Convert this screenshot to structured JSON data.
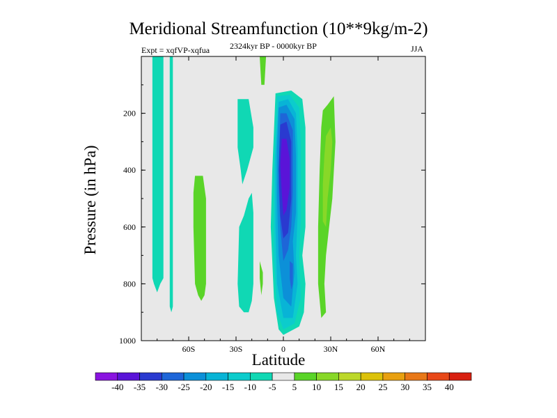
{
  "chart_data": {
    "type": "contour",
    "title": "Meridional Streamfunction (10**9kg/m-2)",
    "subtitle_left": "Expt = xqfVP-xqfua",
    "subtitle_center": "2324kyr BP - 0000kyr BP",
    "subtitle_right": "JJA",
    "xlabel": "Latitude",
    "ylabel": "Pressure (in hPa)",
    "xlim": [
      -90,
      90
    ],
    "ylim": [
      1000,
      0
    ],
    "x_ticks": [
      {
        "value": -60,
        "label": "60S"
      },
      {
        "value": -30,
        "label": "30S"
      },
      {
        "value": 0,
        "label": "0"
      },
      {
        "value": 30,
        "label": "30N"
      },
      {
        "value": 60,
        "label": "60N"
      }
    ],
    "y_ticks": [
      {
        "value": 200,
        "label": "200"
      },
      {
        "value": 400,
        "label": "400"
      },
      {
        "value": 600,
        "label": "600"
      },
      {
        "value": 800,
        "label": "800"
      },
      {
        "value": 1000,
        "label": "1000"
      }
    ],
    "colorbar": {
      "levels": [
        "-40",
        "-35",
        "-30",
        "-25",
        "-20",
        "-15",
        "-10",
        "-5",
        "5",
        "10",
        "15",
        "20",
        "25",
        "30",
        "35",
        "40"
      ],
      "colors": [
        "#8a14e0",
        "#5a14d8",
        "#2a3ad0",
        "#1e66d8",
        "#0c90d8",
        "#08b4d6",
        "#0ccccc",
        "#10d8b4",
        "#e8e8e8",
        "#5ad428",
        "#88d828",
        "#bcd82a",
        "#dcc20a",
        "#e8a010",
        "#e87818",
        "#e84818",
        "#d82010"
      ]
    },
    "regions": [
      {
        "name": "far-south-band",
        "level": "-5",
        "points": [
          [
            -83,
            0
          ],
          [
            -76,
            0
          ],
          [
            -76,
            780
          ],
          [
            -78,
            800
          ],
          [
            -80,
            830
          ],
          [
            -82,
            800
          ],
          [
            -83,
            780
          ]
        ]
      },
      {
        "name": "south-thin-strip",
        "level": "-5",
        "points": [
          [
            -72,
            0
          ],
          [
            -70,
            0
          ],
          [
            -70,
            880
          ],
          [
            -71,
            900
          ],
          [
            -72,
            880
          ]
        ]
      },
      {
        "name": "south-positive-cell",
        "level": "5",
        "points": [
          [
            -56,
            420
          ],
          [
            -51,
            420
          ],
          [
            -49,
            500
          ],
          [
            -49,
            800
          ],
          [
            -50,
            840
          ],
          [
            -52,
            860
          ],
          [
            -54,
            840
          ],
          [
            -56,
            800
          ],
          [
            -57,
            600
          ],
          [
            -57,
            480
          ]
        ]
      },
      {
        "name": "subtropical-upper-band",
        "level": "-5",
        "points": [
          [
            -29,
            150
          ],
          [
            -22,
            150
          ],
          [
            -19,
            250
          ],
          [
            -19,
            320
          ],
          [
            -23,
            400
          ],
          [
            -26,
            450
          ],
          [
            -27,
            400
          ],
          [
            -29,
            320
          ]
        ]
      },
      {
        "name": "subtropical-lower-band",
        "level": "-5",
        "points": [
          [
            -28,
            600
          ],
          [
            -25,
            560
          ],
          [
            -22,
            500
          ],
          [
            -20,
            480
          ],
          [
            -19,
            550
          ],
          [
            -19,
            800
          ],
          [
            -20,
            860
          ],
          [
            -22,
            900
          ],
          [
            -25,
            900
          ],
          [
            -28,
            880
          ],
          [
            -29,
            800
          ]
        ]
      },
      {
        "name": "top-positive-strip",
        "level": "5",
        "points": [
          [
            -15,
            0
          ],
          [
            -11,
            0
          ],
          [
            -12,
            100
          ],
          [
            -14,
            100
          ]
        ]
      },
      {
        "name": "small-positive-spot",
        "level": "5",
        "points": [
          [
            -15,
            720
          ],
          [
            -13,
            760
          ],
          [
            -13,
            800
          ],
          [
            -14,
            840
          ],
          [
            -15,
            780
          ]
        ]
      },
      {
        "name": "hadley-cell-outer",
        "level": "-5",
        "points": [
          [
            -5,
            130
          ],
          [
            5,
            120
          ],
          [
            12,
            150
          ],
          [
            14,
            250
          ],
          [
            14,
            600
          ],
          [
            12,
            700
          ],
          [
            14,
            800
          ],
          [
            13,
            900
          ],
          [
            10,
            950
          ],
          [
            0,
            980
          ],
          [
            -3,
            960
          ],
          [
            -6,
            850
          ],
          [
            -8,
            600
          ],
          [
            -7,
            400
          ]
        ]
      },
      {
        "name": "hadley-cell-minus10",
        "level": "-10",
        "points": [
          [
            -4,
            140
          ],
          [
            4,
            135
          ],
          [
            10,
            180
          ],
          [
            11,
            300
          ],
          [
            11,
            580
          ],
          [
            10,
            700
          ],
          [
            11,
            850
          ],
          [
            7,
            940
          ],
          [
            0,
            960
          ],
          [
            -4,
            900
          ],
          [
            -6,
            700
          ],
          [
            -6,
            400
          ]
        ]
      },
      {
        "name": "hadley-cell-minus15",
        "level": "-15",
        "points": [
          [
            -3,
            160
          ],
          [
            3,
            150
          ],
          [
            8,
            200
          ],
          [
            9,
            320
          ],
          [
            9,
            560
          ],
          [
            8,
            700
          ],
          [
            9,
            800
          ],
          [
            6,
            920
          ],
          [
            0,
            920
          ],
          [
            -4,
            800
          ],
          [
            -5,
            600
          ],
          [
            -5,
            350
          ]
        ]
      },
      {
        "name": "hadley-cell-minus20",
        "level": "-20",
        "points": [
          [
            -3,
            180
          ],
          [
            2,
            170
          ],
          [
            7,
            220
          ],
          [
            8,
            350
          ],
          [
            8,
            550
          ],
          [
            6,
            650
          ],
          [
            7,
            760
          ],
          [
            5,
            880
          ],
          [
            0,
            850
          ],
          [
            -3,
            700
          ],
          [
            -4,
            500
          ],
          [
            -4,
            320
          ]
        ]
      },
      {
        "name": "hadley-cell-minus25",
        "level": "-25",
        "points": [
          [
            -2,
            200
          ],
          [
            2,
            200
          ],
          [
            6,
            260
          ],
          [
            6,
            480
          ],
          [
            5,
            600
          ],
          [
            3,
            680
          ],
          [
            0,
            720
          ],
          [
            -2,
            600
          ],
          [
            -3,
            450
          ]
        ]
      },
      {
        "name": "hadley-cell-minus30",
        "level": "-30",
        "points": [
          [
            -2,
            240
          ],
          [
            2,
            230
          ],
          [
            5,
            300
          ],
          [
            5,
            500
          ],
          [
            3,
            620
          ],
          [
            0,
            640
          ],
          [
            -2,
            560
          ],
          [
            -3,
            400
          ]
        ]
      },
      {
        "name": "hadley-cell-minus35",
        "level": "-35",
        "points": [
          [
            -1,
            290
          ],
          [
            2,
            290
          ],
          [
            4,
            360
          ],
          [
            4,
            460
          ],
          [
            2,
            540
          ],
          [
            0,
            560
          ],
          [
            -1,
            480
          ],
          [
            -2,
            380
          ]
        ]
      },
      {
        "name": "north-positive-cell",
        "level": "5",
        "points": [
          [
            25,
            190
          ],
          [
            28,
            170
          ],
          [
            32,
            140
          ],
          [
            33,
            300
          ],
          [
            31,
            500
          ],
          [
            29,
            600
          ],
          [
            27,
            700
          ],
          [
            26,
            800
          ],
          [
            27,
            900
          ],
          [
            24,
            920
          ],
          [
            22,
            800
          ],
          [
            22,
            600
          ],
          [
            23,
            400
          ],
          [
            24,
            250
          ]
        ]
      },
      {
        "name": "north-positive-inner",
        "level": "10",
        "points": [
          [
            27,
            280
          ],
          [
            30,
            250
          ],
          [
            31,
            300
          ],
          [
            30,
            400
          ],
          [
            28,
            500
          ],
          [
            27,
            600
          ],
          [
            25,
            580
          ],
          [
            25,
            450
          ],
          [
            26,
            350
          ]
        ]
      },
      {
        "name": "hadley-lower-spot",
        "level": "-25",
        "points": [
          [
            4,
            720
          ],
          [
            6,
            730
          ],
          [
            6,
            800
          ],
          [
            5,
            820
          ],
          [
            4,
            780
          ]
        ]
      }
    ]
  }
}
